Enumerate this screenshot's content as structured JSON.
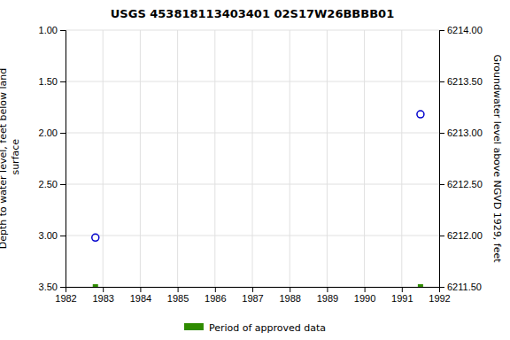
{
  "chart_data": {
    "type": "scatter",
    "title": "USGS 453818113403401 02S17W26BBBB01",
    "ylabel": "Depth to water level, feet below land\n surface",
    "y2label": "Groundwater level above NGVD 1929, feet",
    "x": [
      1982.8,
      1991.5
    ],
    "series": [
      {
        "color": "#0000cc",
        "marker": "circle-open",
        "values": [
          3.02,
          1.82
        ]
      },
      {
        "name": "Period of approved data",
        "color": "#2e8b00",
        "marker": "square",
        "values": [
          3.5,
          3.5
        ]
      }
    ],
    "xlim": [
      1982,
      1992
    ],
    "xticks": [
      1982,
      1983,
      1984,
      1985,
      1986,
      1987,
      1988,
      1989,
      1990,
      1991,
      1992
    ],
    "ylim": [
      3.5,
      1.0
    ],
    "yticks": [
      {
        "value": 1.0,
        "label": "1.00"
      },
      {
        "value": 1.5,
        "label": "1.50"
      },
      {
        "value": 2.0,
        "label": "2.00"
      },
      {
        "value": 2.5,
        "label": "2.50"
      },
      {
        "value": 3.0,
        "label": "3.00"
      },
      {
        "value": 3.5,
        "label": "3.50"
      }
    ],
    "y2lim": [
      6211.5,
      6214.0
    ],
    "y2ticks": [
      {
        "value": 6211.5,
        "label": "6211.50"
      },
      {
        "value": 6212.0,
        "label": "6212.00"
      },
      {
        "value": 6212.5,
        "label": "6212.50"
      },
      {
        "value": 6213.0,
        "label": "6213.00"
      },
      {
        "value": 6213.5,
        "label": "6213.50"
      },
      {
        "value": 6214.0,
        "label": "6214.00"
      }
    ],
    "grid": true,
    "legend": "bottom"
  }
}
